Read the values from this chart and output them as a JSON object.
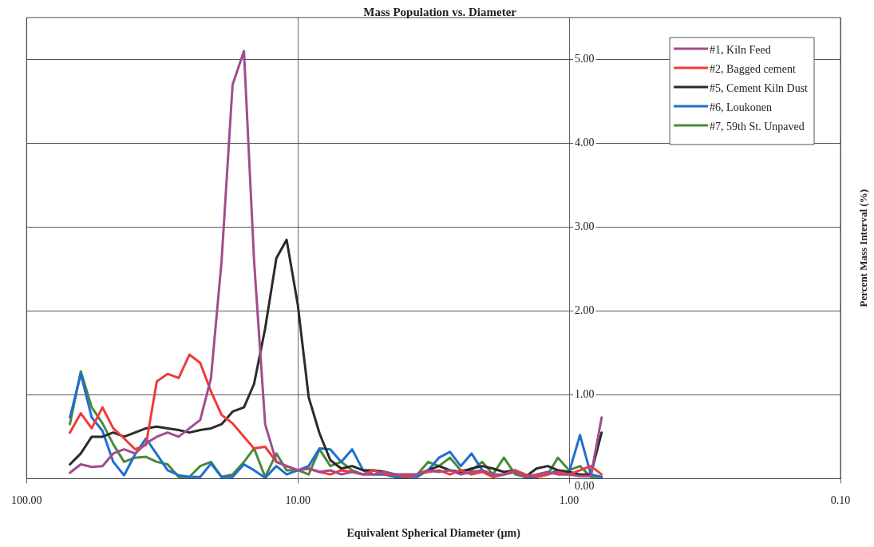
{
  "chart_data": {
    "type": "line",
    "title": "Mass Population vs. Diameter",
    "xlabel": "Equivalent Spherical Diameter (µm)",
    "ylabel": "Percent Mass Interval (%)",
    "log": "x",
    "xlim": [
      100,
      0.1
    ],
    "xticks": [
      {
        "value": 100,
        "label": "100.00"
      },
      {
        "value": 10,
        "label": "10.00"
      },
      {
        "value": 1,
        "label": "1.00"
      },
      {
        "value": 0.1,
        "label": "0.10"
      }
    ],
    "ylim": [
      0,
      5.5
    ],
    "yticks": [
      {
        "value": 0,
        "label": "0.00"
      },
      {
        "value": 1,
        "label": "1.00"
      },
      {
        "value": 2,
        "label": "2.00"
      },
      {
        "value": 3,
        "label": "3.00"
      },
      {
        "value": 4,
        "label": "4.00"
      },
      {
        "value": 5,
        "label": "5.00"
      }
    ],
    "grid": true,
    "legend": "top right",
    "marker": "none",
    "line_style": "solid",
    "x": [
      69.2,
      63.1,
      57.5,
      52.5,
      47.9,
      43.7,
      39.8,
      36.3,
      33.1,
      30.2,
      27.5,
      25.1,
      22.9,
      20.9,
      19.1,
      17.4,
      15.8,
      14.5,
      13.2,
      12.0,
      11.0,
      10.0,
      9.12,
      8.32,
      7.59,
      6.92,
      6.31,
      5.75,
      5.25,
      4.79,
      4.37,
      3.98,
      3.63,
      3.31,
      3.02,
      2.75,
      2.51,
      2.29,
      2.09,
      1.91,
      1.74,
      1.58,
      1.45,
      1.32,
      1.2,
      1.1,
      1.0,
      0.912,
      0.832,
      0.759
    ],
    "series": [
      {
        "name": "#1, Kiln Feed",
        "color": "#a24c8e",
        "values": [
          0.07,
          0.17,
          0.14,
          0.15,
          0.3,
          0.35,
          0.3,
          0.42,
          0.5,
          0.55,
          0.5,
          0.6,
          0.7,
          1.2,
          2.6,
          4.7,
          5.1,
          2.6,
          0.65,
          0.2,
          0.15,
          0.1,
          0.12,
          0.08,
          0.1,
          0.05,
          0.08,
          0.05,
          0.05,
          0.08,
          0.05,
          0.05,
          0.05,
          0.1,
          0.08,
          0.1,
          0.05,
          0.08,
          0.1,
          0.05,
          0.05,
          0.08,
          0.02,
          0.05,
          0.08,
          0.05,
          0.05,
          0.03,
          0.03,
          0.73
        ]
      },
      {
        "name": "#2, Bagged cement",
        "color": "#f03a3a",
        "values": [
          0.55,
          0.78,
          0.6,
          0.85,
          0.6,
          0.48,
          0.35,
          0.4,
          1.16,
          1.25,
          1.2,
          1.48,
          1.38,
          1.04,
          0.76,
          0.66,
          0.5,
          0.36,
          0.38,
          0.2,
          0.15,
          0.1,
          0.12,
          0.08,
          0.05,
          0.1,
          0.08,
          0.05,
          0.1,
          0.05,
          0.05,
          0.02,
          0.05,
          0.08,
          0.1,
          0.05,
          0.1,
          0.05,
          0.08,
          0.02,
          0.05,
          0.1,
          0.05,
          0.02,
          0.05,
          0.08,
          0.05,
          0.1,
          0.15,
          0.05
        ]
      },
      {
        "name": "#5, Cement Kiln Dust",
        "color": "#2b2b2b",
        "values": [
          0.17,
          0.3,
          0.5,
          0.5,
          0.55,
          0.5,
          0.55,
          0.6,
          0.62,
          0.6,
          0.58,
          0.55,
          0.58,
          0.6,
          0.65,
          0.8,
          0.85,
          1.13,
          1.79,
          2.63,
          2.85,
          2.07,
          0.97,
          0.54,
          0.22,
          0.12,
          0.15,
          0.1,
          0.1,
          0.08,
          0.05,
          0.05,
          0.05,
          0.1,
          0.15,
          0.1,
          0.08,
          0.12,
          0.15,
          0.12,
          0.08,
          0.1,
          0.02,
          0.12,
          0.15,
          0.1,
          0.08,
          0.05,
          0.05,
          0.55
        ]
      },
      {
        "name": "#6, Loukonen",
        "color": "#1f6fd0",
        "values": [
          0.73,
          1.25,
          0.73,
          0.57,
          0.2,
          0.04,
          0.29,
          0.48,
          0.29,
          0.1,
          0.04,
          0.02,
          0.02,
          0.18,
          0.02,
          0.02,
          0.17,
          0.1,
          0.01,
          0.15,
          0.05,
          0.1,
          0.15,
          0.36,
          0.35,
          0.2,
          0.35,
          0.1,
          0.05,
          0.05,
          0.02,
          0.02,
          0.02,
          0.1,
          0.25,
          0.32,
          0.15,
          0.3,
          0.1,
          0.02,
          0.05,
          0.08,
          0.02,
          0.02,
          0.05,
          0.1,
          0.08,
          0.52,
          0.05,
          0.02
        ]
      },
      {
        "name": "#7, 59th St. Unpaved",
        "color": "#4a8a3a",
        "values": [
          0.65,
          1.28,
          0.85,
          0.66,
          0.41,
          0.2,
          0.25,
          0.26,
          0.2,
          0.17,
          0.02,
          0.02,
          0.15,
          0.2,
          0.02,
          0.05,
          0.2,
          0.36,
          0.02,
          0.3,
          0.1,
          0.1,
          0.05,
          0.35,
          0.15,
          0.2,
          0.1,
          0.05,
          0.1,
          0.05,
          0.02,
          0.02,
          0.05,
          0.2,
          0.15,
          0.25,
          0.1,
          0.1,
          0.2,
          0.05,
          0.25,
          0.05,
          0.02,
          0.02,
          0.05,
          0.25,
          0.1,
          0.15,
          0.02,
          0.02
        ]
      }
    ]
  }
}
